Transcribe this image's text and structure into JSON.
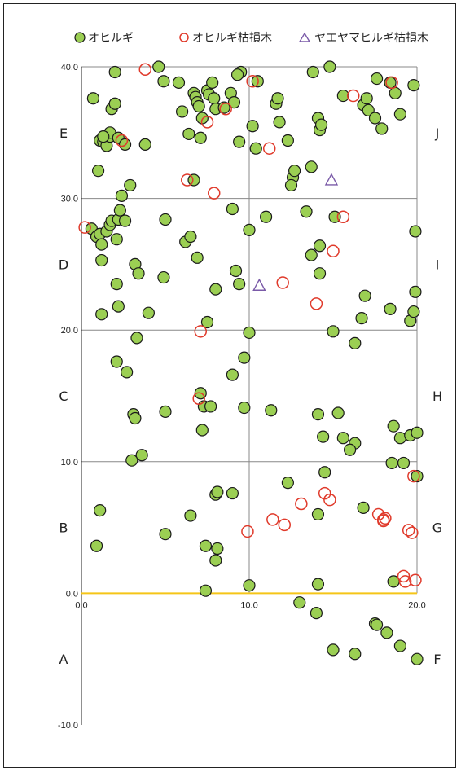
{
  "chart_data": {
    "type": "scatter",
    "xlim": [
      0,
      20
    ],
    "ylim": [
      -10,
      40
    ],
    "x_ticks": [
      0,
      10,
      20
    ],
    "y_ticks": [
      -10,
      0,
      10,
      20,
      30,
      40
    ],
    "x_tick_labels": [
      "0.0",
      "10.0",
      "20.0"
    ],
    "y_tick_labels": [
      "-10.0",
      "0.0",
      "10.0",
      "20.0",
      "30.0",
      "40.0"
    ],
    "grid": true,
    "baseline": {
      "y": 0,
      "color": "#f5c518"
    },
    "legend_position": "top",
    "section_labels_left": [
      {
        "label": "A",
        "y": -5
      },
      {
        "label": "B",
        "y": 5
      },
      {
        "label": "C",
        "y": 15
      },
      {
        "label": "D",
        "y": 25
      },
      {
        "label": "E",
        "y": 35
      }
    ],
    "section_labels_right": [
      {
        "label": "F",
        "y": -5
      },
      {
        "label": "G",
        "y": 5
      },
      {
        "label": "H",
        "y": 15
      },
      {
        "label": "I",
        "y": 25
      },
      {
        "label": "J",
        "y": 35
      }
    ],
    "series": [
      {
        "name": "オヒルギ",
        "marker": "filled-circle",
        "color": "#9bcf53",
        "edge": "#1a1a1a",
        "points": [
          [
            0.7,
            37.6
          ],
          [
            1.1,
            34.4
          ],
          [
            1.3,
            34.3
          ],
          [
            1.5,
            34.0
          ],
          [
            1.7,
            34.7
          ],
          [
            1.7,
            35.0
          ],
          [
            1.8,
            36.8
          ],
          [
            2.0,
            37.2
          ],
          [
            2.0,
            39.6
          ],
          [
            2.2,
            34.6
          ],
          [
            2.6,
            34.1
          ],
          [
            3.8,
            34.1
          ],
          [
            4.6,
            40.0
          ],
          [
            4.9,
            38.9
          ],
          [
            5.8,
            38.8
          ],
          [
            6.0,
            36.6
          ],
          [
            6.4,
            34.9
          ],
          [
            6.7,
            38.0
          ],
          [
            6.8,
            37.7
          ],
          [
            6.9,
            37.3
          ],
          [
            7.0,
            37.0
          ],
          [
            7.1,
            34.6
          ],
          [
            7.2,
            36.1
          ],
          [
            7.5,
            38.2
          ],
          [
            7.6,
            37.9
          ],
          [
            7.8,
            38.8
          ],
          [
            7.9,
            37.6
          ],
          [
            8.0,
            36.8
          ],
          [
            8.5,
            36.9
          ],
          [
            8.9,
            38.0
          ],
          [
            9.1,
            37.3
          ],
          [
            9.5,
            39.6
          ],
          [
            9.3,
            39.4
          ],
          [
            9.4,
            34.3
          ],
          [
            10.2,
            35.5
          ],
          [
            10.4,
            33.8
          ],
          [
            10.5,
            38.9
          ],
          [
            11.6,
            37.2
          ],
          [
            11.7,
            37.6
          ],
          [
            11.8,
            35.8
          ],
          [
            12.3,
            34.4
          ],
          [
            12.6,
            31.6
          ],
          [
            12.7,
            32.1
          ],
          [
            13.7,
            32.4
          ],
          [
            13.8,
            39.6
          ],
          [
            14.1,
            36.1
          ],
          [
            14.2,
            35.2
          ],
          [
            14.3,
            35.6
          ],
          [
            14.8,
            40.0
          ],
          [
            15.6,
            37.8
          ],
          [
            16.8,
            37.1
          ],
          [
            17.0,
            37.6
          ],
          [
            17.1,
            36.7
          ],
          [
            17.5,
            36.1
          ],
          [
            17.6,
            39.1
          ],
          [
            17.9,
            35.3
          ],
          [
            18.4,
            38.8
          ],
          [
            18.7,
            38.0
          ],
          [
            19.0,
            36.4
          ],
          [
            19.8,
            38.6
          ],
          [
            1.0,
            32.1
          ],
          [
            1.3,
            34.7
          ],
          [
            0.6,
            27.7
          ],
          [
            0.9,
            27.1
          ],
          [
            1.1,
            27.3
          ],
          [
            1.2,
            26.5
          ],
          [
            1.2,
            25.3
          ],
          [
            1.5,
            27.5
          ],
          [
            1.7,
            28.0
          ],
          [
            1.8,
            28.3
          ],
          [
            2.1,
            26.9
          ],
          [
            2.2,
            28.4
          ],
          [
            2.3,
            29.1
          ],
          [
            2.4,
            30.2
          ],
          [
            2.6,
            28.3
          ],
          [
            2.9,
            31.0
          ],
          [
            3.2,
            25.0
          ],
          [
            3.4,
            24.3
          ],
          [
            4.9,
            24.0
          ],
          [
            5.0,
            28.4
          ],
          [
            6.2,
            26.7
          ],
          [
            6.5,
            27.1
          ],
          [
            6.7,
            31.4
          ],
          [
            6.9,
            25.5
          ],
          [
            9.0,
            29.2
          ],
          [
            9.2,
            24.5
          ],
          [
            10.0,
            27.6
          ],
          [
            11.0,
            28.6
          ],
          [
            12.5,
            31.0
          ],
          [
            13.4,
            29.0
          ],
          [
            13.7,
            25.7
          ],
          [
            14.2,
            26.4
          ],
          [
            15.1,
            28.6
          ],
          [
            19.9,
            27.5
          ],
          [
            1.2,
            21.2
          ],
          [
            2.1,
            23.5
          ],
          [
            2.2,
            21.8
          ],
          [
            2.1,
            17.6
          ],
          [
            3.3,
            19.4
          ],
          [
            4.0,
            21.3
          ],
          [
            7.5,
            20.6
          ],
          [
            8.0,
            23.1
          ],
          [
            9.0,
            16.6
          ],
          [
            9.4,
            23.5
          ],
          [
            9.7,
            17.9
          ],
          [
            10.0,
            19.8
          ],
          [
            14.2,
            24.3
          ],
          [
            15.0,
            19.9
          ],
          [
            16.3,
            19.0
          ],
          [
            16.7,
            20.9
          ],
          [
            16.9,
            22.6
          ],
          [
            18.4,
            21.6
          ],
          [
            19.6,
            20.7
          ],
          [
            19.8,
            21.4
          ],
          [
            19.9,
            22.9
          ],
          [
            2.7,
            16.8
          ],
          [
            3.1,
            13.6
          ],
          [
            3.2,
            13.3
          ],
          [
            3.6,
            10.5
          ],
          [
            3.0,
            10.1
          ],
          [
            5.0,
            13.8
          ],
          [
            7.1,
            15.2
          ],
          [
            7.3,
            14.2
          ],
          [
            7.2,
            12.4
          ],
          [
            7.7,
            14.2
          ],
          [
            9.7,
            14.1
          ],
          [
            11.3,
            13.9
          ],
          [
            14.1,
            13.6
          ],
          [
            14.4,
            11.9
          ],
          [
            15.3,
            13.7
          ],
          [
            15.6,
            11.8
          ],
          [
            16.3,
            11.4
          ],
          [
            16.0,
            10.9
          ],
          [
            18.6,
            12.7
          ],
          [
            19.0,
            11.8
          ],
          [
            19.6,
            12.0
          ],
          [
            20.0,
            12.2
          ],
          [
            19.2,
            9.9
          ],
          [
            18.5,
            9.9
          ],
          [
            14.5,
            9.2
          ],
          [
            12.3,
            8.4
          ],
          [
            14.1,
            6.0
          ],
          [
            8.0,
            7.5
          ],
          [
            8.1,
            7.7
          ],
          [
            9.0,
            7.6
          ],
          [
            6.5,
            5.9
          ],
          [
            5.0,
            4.5
          ],
          [
            1.1,
            6.3
          ],
          [
            0.9,
            3.6
          ],
          [
            7.4,
            3.6
          ],
          [
            8.1,
            3.4
          ],
          [
            8.0,
            2.5
          ],
          [
            7.4,
            0.2
          ],
          [
            10.0,
            0.6
          ],
          [
            14.1,
            0.7
          ],
          [
            18.6,
            0.9
          ],
          [
            16.8,
            6.5
          ],
          [
            20.0,
            8.9
          ],
          [
            13.0,
            -0.7
          ],
          [
            14.0,
            -1.5
          ],
          [
            17.5,
            -2.3
          ],
          [
            17.6,
            -2.4
          ],
          [
            18.2,
            -3.0
          ],
          [
            19.0,
            -4.0
          ],
          [
            15.0,
            -4.3
          ],
          [
            16.3,
            -4.6
          ],
          [
            20.0,
            -5.0
          ]
        ]
      },
      {
        "name": "オヒルギ枯損木",
        "marker": "hollow-circle",
        "color": "#e03a2b",
        "points": [
          [
            3.8,
            39.8
          ],
          [
            10.2,
            38.9
          ],
          [
            8.6,
            36.8
          ],
          [
            7.5,
            35.8
          ],
          [
            2.4,
            34.4
          ],
          [
            11.2,
            33.8
          ],
          [
            6.3,
            31.4
          ],
          [
            7.9,
            30.4
          ],
          [
            0.2,
            27.8
          ],
          [
            15.0,
            26.0
          ],
          [
            12.0,
            23.6
          ],
          [
            14.0,
            22.0
          ],
          [
            7.1,
            19.9
          ],
          [
            7.0,
            14.8
          ],
          [
            18.5,
            38.8
          ],
          [
            16.2,
            37.8
          ],
          [
            15.6,
            28.6
          ],
          [
            14.5,
            7.6
          ],
          [
            13.1,
            6.8
          ],
          [
            11.4,
            5.6
          ],
          [
            12.1,
            5.2
          ],
          [
            14.8,
            7.1
          ],
          [
            17.7,
            6.0
          ],
          [
            18.0,
            5.6
          ],
          [
            18.0,
            5.5
          ],
          [
            18.1,
            5.7
          ],
          [
            19.5,
            4.8
          ],
          [
            19.7,
            4.6
          ],
          [
            19.8,
            8.9
          ],
          [
            9.9,
            4.7
          ],
          [
            19.2,
            1.3
          ],
          [
            19.3,
            0.9
          ],
          [
            19.9,
            1.0
          ]
        ]
      },
      {
        "name": "ヤエヤマヒルギ枯損木",
        "marker": "hollow-triangle",
        "color": "#7a5aa8",
        "points": [
          [
            10.6,
            23.4
          ],
          [
            14.9,
            31.4
          ]
        ]
      }
    ]
  }
}
